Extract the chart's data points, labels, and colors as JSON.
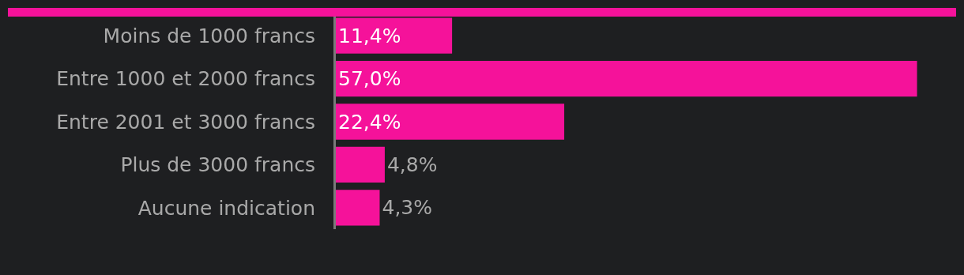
{
  "chart_data": {
    "type": "bar",
    "orientation": "horizontal",
    "categories": [
      "Moins de 1000 francs",
      "Entre 1000 et 2000 francs",
      "Entre 2001 et 3000 francs",
      "Plus de 3000 francs",
      "Aucune indication"
    ],
    "values": [
      11.4,
      57.0,
      22.4,
      4.8,
      4.3
    ],
    "value_labels": [
      "11,4%",
      "57,0%",
      "22,4%",
      "4,8%",
      "4,3%"
    ],
    "color": "#f5129a"
  }
}
